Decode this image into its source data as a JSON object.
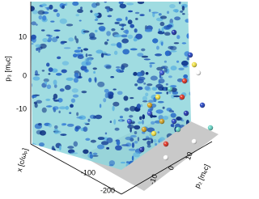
{
  "axes": {
    "vertical": {
      "label": "p₃ [mₑc]",
      "ticks": [
        "10",
        "0",
        "-10"
      ]
    },
    "depth": {
      "label": "x [c/ωₚ]",
      "ticks": [
        "-100",
        "-200"
      ]
    },
    "horizontal": {
      "label": "p₂ [mₑc]",
      "ticks": [
        "-10",
        "0",
        "10"
      ]
    }
  }
}
